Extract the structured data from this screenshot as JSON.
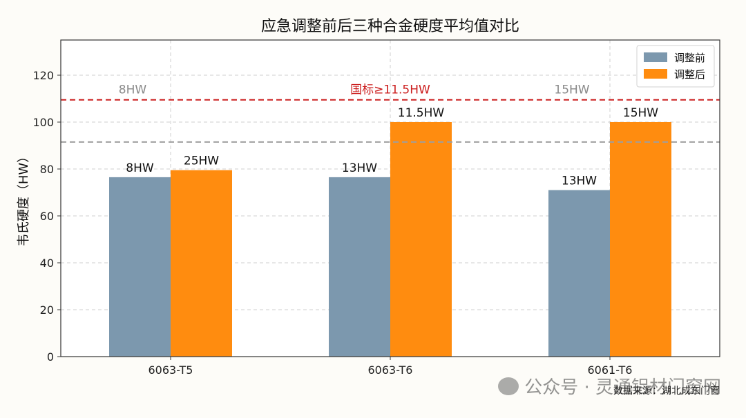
{
  "chart_data": {
    "type": "bar",
    "title": "应急调整前后三种合金硬度平均值对比",
    "xlabel": "",
    "ylabel": "韦氏硬度（HW）",
    "ylim": [
      0,
      135
    ],
    "yticks": [
      0,
      20,
      40,
      60,
      80,
      100,
      120
    ],
    "categories": [
      "6063-T5",
      "6063-T6",
      "6061-T6"
    ],
    "series": [
      {
        "name": "调整前",
        "color": "#7c98ae",
        "values": [
          76.5,
          76.5,
          71
        ],
        "labels": [
          "8HW",
          "13HW",
          "13HW"
        ]
      },
      {
        "name": "调整后",
        "color": "#ff8c0f",
        "values": [
          79.5,
          100,
          100
        ],
        "labels": [
          "25HW",
          "11.5HW",
          "15HW"
        ]
      }
    ],
    "reference_lines": [
      {
        "value": 109.5,
        "color": "#cc1f1f",
        "label": "国标≥11.5HW"
      },
      {
        "value": 91.5,
        "color": "#9e9e9e",
        "label": ""
      }
    ],
    "annotations": [
      {
        "category": "6063-T5",
        "text": "8HW",
        "color": "#8a8a8a"
      },
      {
        "category": "6061-T6",
        "text": "15HW",
        "color": "#8a8a8a"
      }
    ],
    "grid": true,
    "legend_position": "top-right"
  },
  "watermark": "公众号 · 灵通铝材门窗网",
  "source_note": "数据来源：湖北成东门窗"
}
